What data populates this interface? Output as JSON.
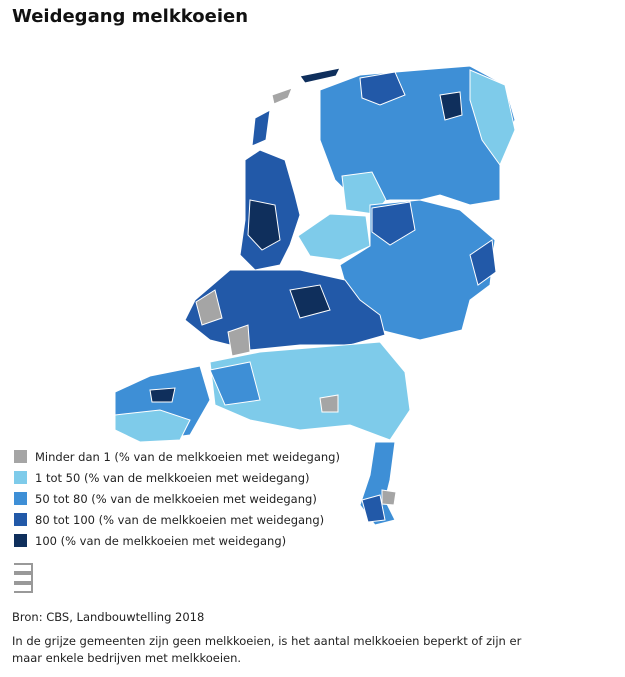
{
  "title": "Weidegang melkkoeien",
  "legend": {
    "items": [
      {
        "label": "Minder dan 1 (% van de melkkoeien met weidegang)",
        "color": "#a5a5a5"
      },
      {
        "label": "1 tot 50 (% van de melkkoeien met weidegang)",
        "color": "#7ecbea"
      },
      {
        "label": "50 tot 80 (% van de melkkoeien met weidegang)",
        "color": "#3e8fd6"
      },
      {
        "label": "80 tot 100 (% van de melkkoeien met weidegang)",
        "color": "#2259a8"
      },
      {
        "label": "100 (% van de melkkoeien met weidegang)",
        "color": "#0f2f5c"
      }
    ]
  },
  "source": "Bron: CBS, Landbouwtelling 2018",
  "note": "In de grijze gemeenten zijn geen melkkoeien, is het aantal melkkoeien beperkt of zijn er maar enkele bedrijven met melkkoeien."
}
